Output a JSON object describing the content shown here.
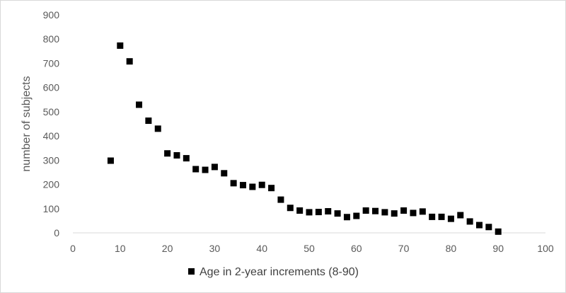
{
  "chart_data": {
    "type": "scatter",
    "title": "",
    "xlabel": "",
    "ylabel": "number of subjects",
    "xlim": [
      0,
      100
    ],
    "ylim": [
      0,
      900
    ],
    "x_ticks": [
      0,
      10,
      20,
      30,
      40,
      50,
      60,
      70,
      80,
      90,
      100
    ],
    "y_ticks": [
      0,
      100,
      200,
      300,
      400,
      500,
      600,
      700,
      800,
      900
    ],
    "grid": false,
    "legend_position": "bottom",
    "marker_color": "#000000",
    "series": [
      {
        "name": "Age in 2-year increments (8-90)",
        "points": [
          [
            8,
            298
          ],
          [
            10,
            773
          ],
          [
            12,
            708
          ],
          [
            14,
            529
          ],
          [
            16,
            463
          ],
          [
            18,
            430
          ],
          [
            20,
            328
          ],
          [
            22,
            320
          ],
          [
            24,
            308
          ],
          [
            26,
            263
          ],
          [
            28,
            260
          ],
          [
            30,
            272
          ],
          [
            32,
            246
          ],
          [
            34,
            205
          ],
          [
            36,
            197
          ],
          [
            38,
            190
          ],
          [
            40,
            198
          ],
          [
            42,
            185
          ],
          [
            44,
            137
          ],
          [
            46,
            103
          ],
          [
            48,
            92
          ],
          [
            50,
            85
          ],
          [
            52,
            86
          ],
          [
            54,
            89
          ],
          [
            56,
            80
          ],
          [
            58,
            65
          ],
          [
            60,
            70
          ],
          [
            62,
            92
          ],
          [
            64,
            90
          ],
          [
            66,
            85
          ],
          [
            68,
            80
          ],
          [
            70,
            92
          ],
          [
            72,
            82
          ],
          [
            74,
            88
          ],
          [
            76,
            66
          ],
          [
            78,
            66
          ],
          [
            80,
            58
          ],
          [
            82,
            73
          ],
          [
            84,
            47
          ],
          [
            86,
            32
          ],
          [
            88,
            24
          ],
          [
            90,
            5
          ]
        ]
      }
    ]
  }
}
